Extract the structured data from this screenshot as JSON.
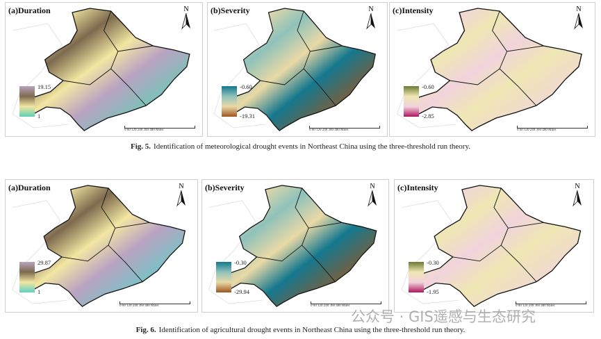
{
  "figures": [
    {
      "caption_label": "Fig. 5.",
      "caption": "Identification of meteorological drought events in Northeast China using the three-threshold run theory.",
      "panels": [
        {
          "title": "(a)Duration",
          "legend_max": "19.15",
          "legend_min": "1",
          "colors": [
            "#b9a3c2",
            "#7d6a4e",
            "#f2e6a2",
            "#5fcfb3"
          ]
        },
        {
          "title": "(b)Severity",
          "legend_max": "-0.60",
          "legend_min": "-19.31",
          "colors": [
            "#14788e",
            "#8fc2bb",
            "#e9d9a6",
            "#a0561f"
          ]
        },
        {
          "title": "(c)Intensity",
          "legend_max": "-0.60",
          "legend_min": "-2.85",
          "colors": [
            "#6b7a32",
            "#efe7b4",
            "#f1d3dc",
            "#b0175f"
          ]
        }
      ]
    },
    {
      "caption_label": "Fig. 6.",
      "caption": "Identification of agricultural drought events in Northeast China using the three-threshold run theory.",
      "panels": [
        {
          "title": "(a)Duration",
          "legend_max": "29.87",
          "legend_min": "1",
          "colors": [
            "#b9a3c2",
            "#7d6a4e",
            "#f2e6a2",
            "#5fcfc6"
          ]
        },
        {
          "title": "(b)Severity",
          "legend_max": "-0.30",
          "legend_min": "-29.94",
          "colors": [
            "#14788e",
            "#8fc2bb",
            "#e9d9a6",
            "#a0561f"
          ]
        },
        {
          "title": "(c)Intensity",
          "legend_max": "-0.30",
          "legend_min": "-1.95",
          "colors": [
            "#6b7a32",
            "#efe7b4",
            "#f1d3dc",
            "#b0175f"
          ]
        }
      ]
    }
  ],
  "north_label": "N",
  "scale_labels": "0 60 120 240 360 480 Miles",
  "watermark": "公众号 · GIS遥感与生态研究"
}
